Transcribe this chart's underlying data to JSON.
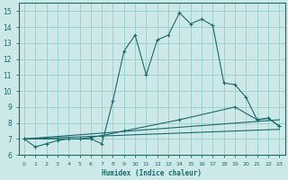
{
  "xlabel": "Humidex (Indice chaleur)",
  "background_color": "#cce8e8",
  "grid_color": "#99cccc",
  "line_color": "#1a6b6b",
  "xlim": [
    -0.5,
    23.5
  ],
  "ylim": [
    6,
    15.5
  ],
  "xticks": [
    0,
    1,
    2,
    3,
    4,
    5,
    6,
    7,
    8,
    9,
    10,
    11,
    12,
    13,
    14,
    15,
    16,
    17,
    18,
    19,
    20,
    21,
    22,
    23
  ],
  "yticks": [
    6,
    7,
    8,
    9,
    10,
    11,
    12,
    13,
    14,
    15
  ],
  "series1_x": [
    0,
    1,
    2,
    3,
    4,
    5,
    6,
    7,
    8,
    9,
    10,
    11,
    12,
    13,
    14,
    15,
    16,
    17,
    18,
    19,
    20,
    21,
    22,
    23
  ],
  "series1_y": [
    7.0,
    6.5,
    6.7,
    6.9,
    7.0,
    7.0,
    7.0,
    6.7,
    9.4,
    12.5,
    13.5,
    11.0,
    13.2,
    13.5,
    14.9,
    14.2,
    14.5,
    14.1,
    10.5,
    10.4,
    9.6,
    8.2,
    8.3,
    7.8
  ],
  "series2_x": [
    0,
    3,
    4,
    5,
    6,
    7,
    9,
    14,
    19,
    21,
    22,
    23
  ],
  "series2_y": [
    7.0,
    7.0,
    7.0,
    7.0,
    7.1,
    7.2,
    7.5,
    8.2,
    9.0,
    8.2,
    8.3,
    7.8
  ],
  "series3_x": [
    0,
    23
  ],
  "series3_y": [
    7.0,
    8.2
  ],
  "series4_x": [
    0,
    23
  ],
  "series4_y": [
    7.0,
    7.6
  ]
}
